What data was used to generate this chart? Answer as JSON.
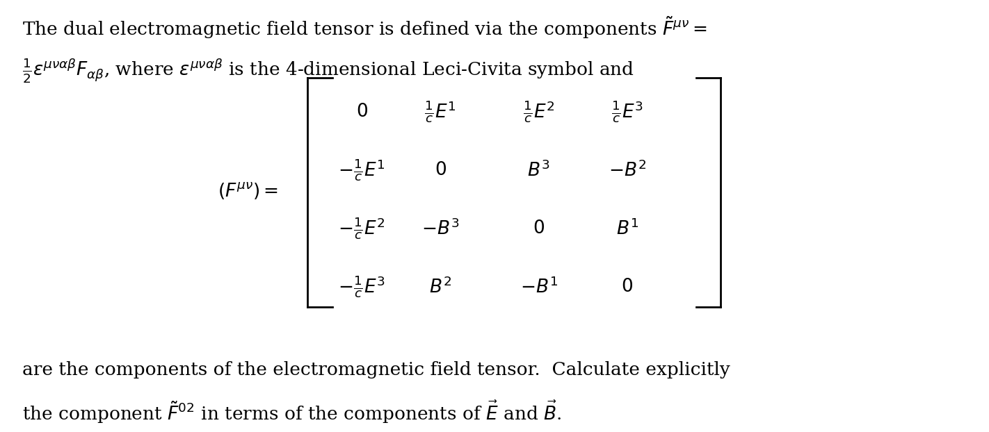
{
  "background_color": "#ffffff",
  "text_color": "#000000",
  "figsize": [
    14.22,
    6.22
  ],
  "dpi": 100,
  "line1": "The dual electromagnetic field tensor is defined via the components $\\tilde{F}^{\\mu\\nu} =$",
  "line2": "$\\frac{1}{2}\\epsilon^{\\mu\\nu\\alpha\\beta} F_{\\alpha\\beta}$, where $\\epsilon^{\\mu\\nu\\alpha\\beta}$ is the 4-dimensional Leci-Civita symbol and",
  "matrix_label": "$(F^{\\mu\\nu}) = $",
  "matrix": [
    [
      "$0$",
      "$\\frac{1}{c}E^1$",
      "$\\frac{1}{c}E^2$",
      "$\\frac{1}{c}E^3$"
    ],
    [
      "$-\\frac{1}{c}E^1$",
      "$0$",
      "$B^3$",
      "$-B^2$"
    ],
    [
      "$-\\frac{1}{c}E^2$",
      "$-B^3$",
      "$0$",
      "$B^1$"
    ],
    [
      "$-\\frac{1}{c}E^3$",
      "$B^2$",
      "$-B^1$",
      "$0$"
    ]
  ],
  "line3": "are the components of the electromagnetic field tensor.  Calculate explicitly",
  "line4": "the component $\\tilde{F}^{02}$ in terms of the components of $\\vec{E}$ and $\\vec{B}$.",
  "fontsize": 19,
  "matrix_fontsize": 19
}
